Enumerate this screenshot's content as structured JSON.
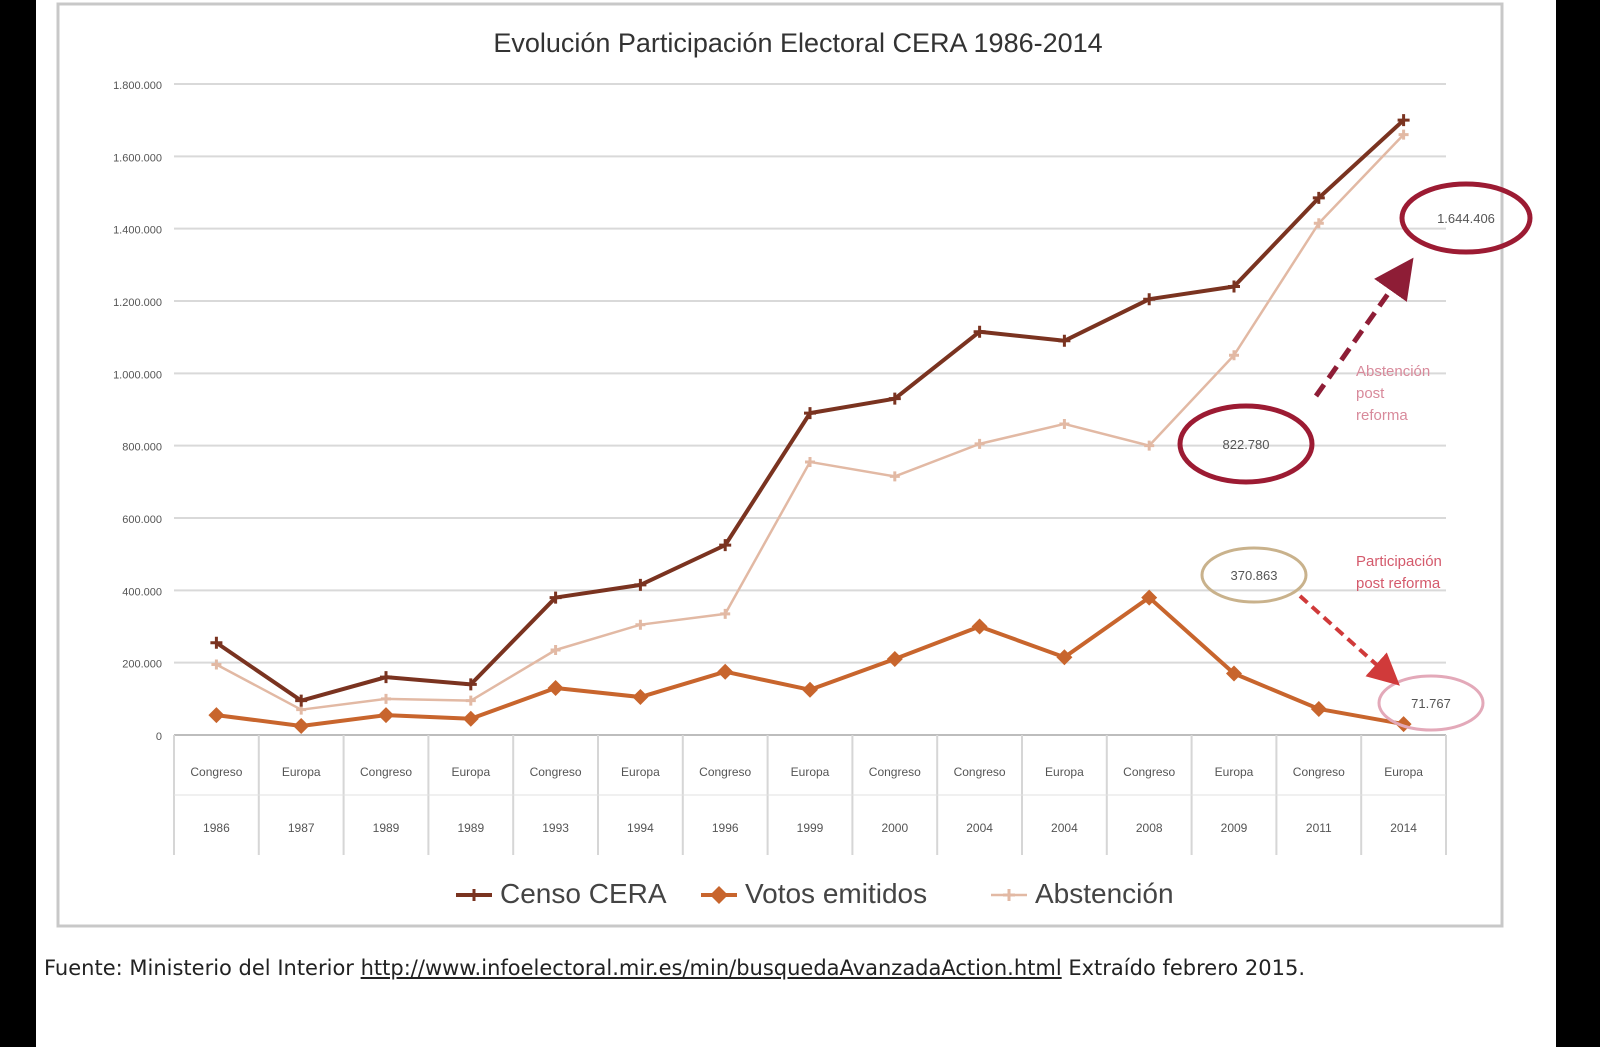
{
  "chart_data": {
    "type": "line",
    "title": "Evolución Participación Electoral CERA 1986-2014",
    "x_categories": [
      {
        "type": "Congreso",
        "year": "1986"
      },
      {
        "type": "Europa",
        "year": "1987"
      },
      {
        "type": "Congreso",
        "year": "1989"
      },
      {
        "type": "Europa",
        "year": "1989"
      },
      {
        "type": "Congreso",
        "year": "1993"
      },
      {
        "type": "Europa",
        "year": "1994"
      },
      {
        "type": "Congreso",
        "year": "1996"
      },
      {
        "type": "Europa",
        "year": "1999"
      },
      {
        "type": "Congreso",
        "year": "2000"
      },
      {
        "type": "Congreso",
        "year": "2004"
      },
      {
        "type": "Europa",
        "year": "2004"
      },
      {
        "type": "Congreso",
        "year": "2008"
      },
      {
        "type": "Europa",
        "year": "2009"
      },
      {
        "type": "Congreso",
        "year": "2011"
      },
      {
        "type": "Europa",
        "year": "2014"
      }
    ],
    "y_ticks": [
      "0",
      "200.000",
      "400.000",
      "600.000",
      "800.000",
      "1.000.000",
      "1.200.000",
      "1.400.000",
      "1.600.000",
      "1.800.000"
    ],
    "ylim": [
      0,
      1800000
    ],
    "grid": true,
    "legend_position": "bottom",
    "series": [
      {
        "name": "Censo CERA",
        "color": "#7a3320",
        "marker": "plus",
        "values": [
          255000,
          95000,
          160000,
          140000,
          380000,
          415000,
          525000,
          890000,
          930000,
          1115000,
          1090000,
          1205000,
          1240000,
          1485000,
          1700000
        ]
      },
      {
        "name": "Votos emitidos",
        "color": "#c8652d",
        "marker": "diamond",
        "values": [
          55000,
          25000,
          55000,
          45000,
          130000,
          105000,
          175000,
          125000,
          210000,
          300000,
          215000,
          380000,
          170000,
          72000,
          30000
        ]
      },
      {
        "name": "Abstención",
        "color": "#e2b9a4",
        "marker": "plus",
        "values": [
          195000,
          70000,
          100000,
          95000,
          235000,
          305000,
          335000,
          755000,
          715000,
          805000,
          860000,
          800000,
          1050000,
          1415000,
          1660000
        ]
      }
    ],
    "annotations": [
      {
        "kind": "ellipse",
        "label": "822.780",
        "value": 822780
      },
      {
        "kind": "ellipse",
        "label": "1.644.406",
        "value": 1644406
      },
      {
        "kind": "ellipse",
        "label": "370.863",
        "value": 370863
      },
      {
        "kind": "ellipse",
        "label": "71.767",
        "value": 71767
      },
      {
        "kind": "note",
        "lines": [
          "Abstención",
          "post",
          "reforma"
        ]
      },
      {
        "kind": "note",
        "lines": [
          "Participación",
          "post reforma"
        ]
      }
    ]
  },
  "source": {
    "prefix": "Fuente: Ministerio del Interior",
    "link": "http://www.infoelectoral.mir.es/min/busquedaAvanzadaAction.html",
    "suffix": "Extraído febrero 2015."
  }
}
